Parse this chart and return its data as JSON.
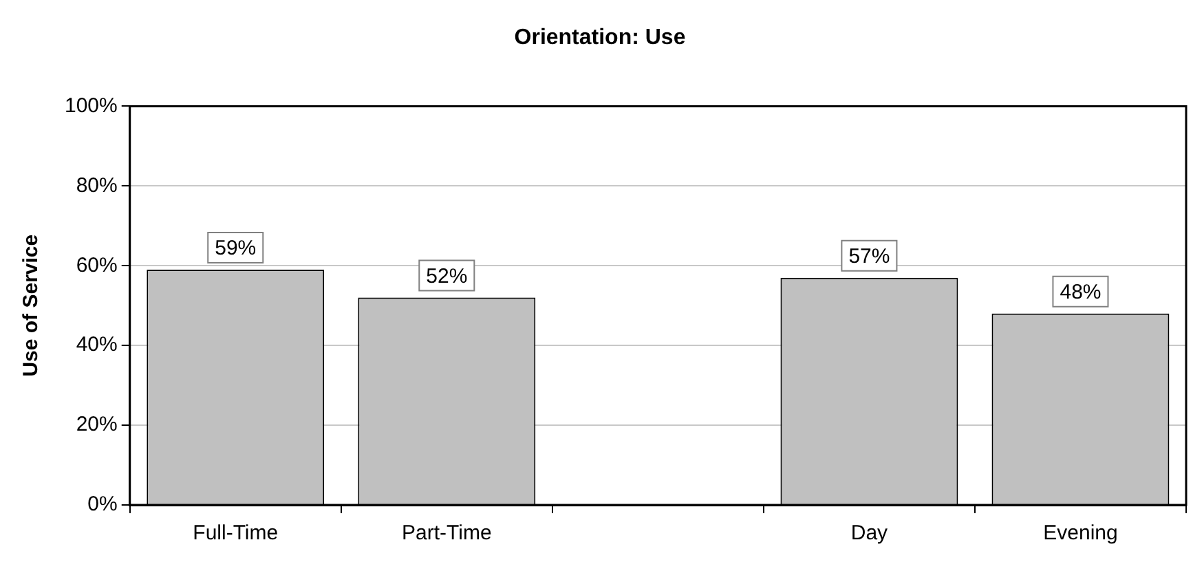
{
  "chart_data": {
    "type": "bar",
    "title": "Orientation: Use",
    "ylabel": "Use of Service",
    "categories": [
      "Full-Time",
      "Part-Time",
      null,
      "Day",
      "Evening"
    ],
    "values": [
      59,
      52,
      null,
      57,
      48
    ],
    "value_labels": [
      "59%",
      "52%",
      null,
      "57%",
      "48%"
    ],
    "color": "#c0c0c0",
    "ylim": [
      0,
      100
    ],
    "yticks": [
      {
        "value": 0,
        "label": "0%"
      },
      {
        "value": 20,
        "label": "20%"
      },
      {
        "value": 40,
        "label": "40%"
      },
      {
        "value": 60,
        "label": "60%"
      },
      {
        "value": 80,
        "label": "80%"
      },
      {
        "value": 100,
        "label": "100%"
      }
    ],
    "grid": "y",
    "legend": false
  }
}
